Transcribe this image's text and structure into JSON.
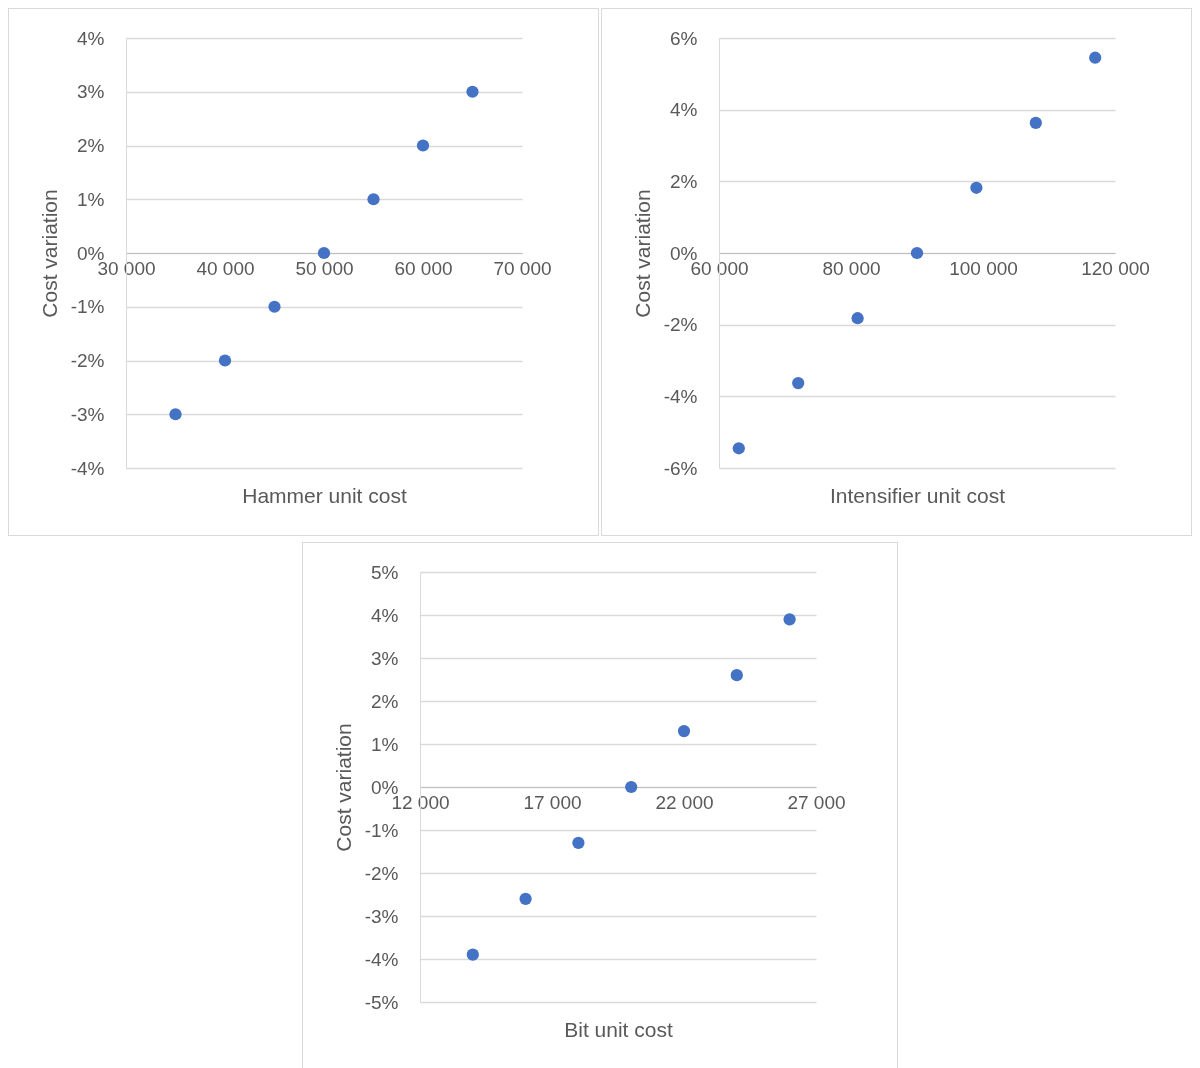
{
  "chart_data": [
    {
      "type": "scatter",
      "xlabel": "Hammer unit cost",
      "ylabel": "Cost variation",
      "marker": "circle",
      "grid": "y",
      "x": [
        35000,
        40000,
        45000,
        50000,
        55000,
        60000,
        65000
      ],
      "values": [
        -3,
        -2,
        -1,
        0,
        1,
        2,
        3
      ],
      "color": "#4472c4",
      "xlim": [
        30000,
        70000
      ],
      "xticks": [
        {
          "value": 30000,
          "label": "30 000"
        },
        {
          "value": 40000,
          "label": "40 000"
        },
        {
          "value": 50000,
          "label": "50 000"
        },
        {
          "value": 60000,
          "label": "60 000"
        },
        {
          "value": 70000,
          "label": "70 000"
        }
      ],
      "ylim": [
        -4,
        4
      ],
      "yticks": [
        {
          "value": -4,
          "label": "-4%"
        },
        {
          "value": -3,
          "label": "-3%"
        },
        {
          "value": -2,
          "label": "-2%"
        },
        {
          "value": -1,
          "label": "-1%"
        },
        {
          "value": 0,
          "label": "0%"
        },
        {
          "value": 1,
          "label": "1%"
        },
        {
          "value": 2,
          "label": "2%"
        },
        {
          "value": 3,
          "label": "3%"
        },
        {
          "value": 4,
          "label": "4%"
        }
      ]
    },
    {
      "type": "scatter",
      "xlabel": "Intensifier unit cost",
      "ylabel": "Cost variation",
      "marker": "circle",
      "grid": "y",
      "x": [
        63000,
        72000,
        81000,
        90000,
        99000,
        108000,
        117000
      ],
      "values": [
        -5.45,
        -3.63,
        -1.82,
        0,
        1.82,
        3.63,
        5.45
      ],
      "color": "#4472c4",
      "xlim": [
        60000,
        120000
      ],
      "xticks": [
        {
          "value": 60000,
          "label": "60 000"
        },
        {
          "value": 80000,
          "label": "80 000"
        },
        {
          "value": 100000,
          "label": "100 000"
        },
        {
          "value": 120000,
          "label": "120 000"
        }
      ],
      "ylim": [
        -6,
        6
      ],
      "yticks": [
        {
          "value": -6,
          "label": "-6%"
        },
        {
          "value": -4,
          "label": "-4%"
        },
        {
          "value": -2,
          "label": "-2%"
        },
        {
          "value": 0,
          "label": "0%"
        },
        {
          "value": 2,
          "label": "2%"
        },
        {
          "value": 4,
          "label": "4%"
        },
        {
          "value": 6,
          "label": "6%"
        }
      ]
    },
    {
      "type": "scatter",
      "xlabel": "Bit unit cost",
      "ylabel": "Cost variation",
      "marker": "circle",
      "grid": "y",
      "x": [
        14000,
        16000,
        18000,
        20000,
        22000,
        24000,
        26000
      ],
      "values": [
        -3.9,
        -2.6,
        -1.3,
        0,
        1.3,
        2.6,
        3.9
      ],
      "color": "#4472c4",
      "xlim": [
        12000,
        27000
      ],
      "xticks": [
        {
          "value": 12000,
          "label": "12 000"
        },
        {
          "value": 17000,
          "label": "17 000"
        },
        {
          "value": 22000,
          "label": "22 000"
        },
        {
          "value": 27000,
          "label": "27 000"
        }
      ],
      "ylim": [
        -5,
        5
      ],
      "yticks": [
        {
          "value": -5,
          "label": "-5%"
        },
        {
          "value": -4,
          "label": "-4%"
        },
        {
          "value": -3,
          "label": "-3%"
        },
        {
          "value": -2,
          "label": "-2%"
        },
        {
          "value": -1,
          "label": "-1%"
        },
        {
          "value": 0,
          "label": "0%"
        },
        {
          "value": 1,
          "label": "1%"
        },
        {
          "value": 2,
          "label": "2%"
        },
        {
          "value": 3,
          "label": "3%"
        },
        {
          "value": 4,
          "label": "4%"
        },
        {
          "value": 5,
          "label": "5%"
        }
      ]
    }
  ]
}
